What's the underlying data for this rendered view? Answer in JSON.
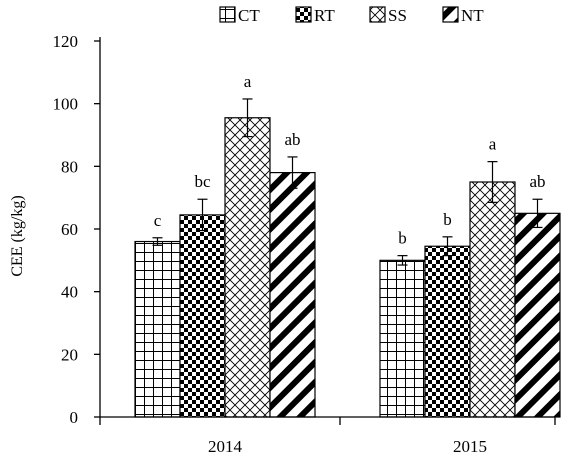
{
  "chart_data": {
    "type": "bar",
    "title": "",
    "xlabel": "",
    "ylabel": "CEE (kg/kg)",
    "ylim": [
      0,
      120
    ],
    "yticks": [
      0,
      20,
      40,
      60,
      80,
      100,
      120
    ],
    "grid": false,
    "legend_position": "top",
    "categories": [
      "2014",
      "2015"
    ],
    "series": [
      {
        "name": "CT",
        "pattern": "grid",
        "values": [
          56,
          50
        ],
        "errors": [
          1.2,
          1.5
        ],
        "labels": [
          "c",
          "b"
        ]
      },
      {
        "name": "RT",
        "pattern": "checker",
        "values": [
          64.5,
          54.5
        ],
        "errors": [
          5,
          3
        ],
        "labels": [
          "bc",
          "b"
        ]
      },
      {
        "name": "SS",
        "pattern": "crosshatch",
        "values": [
          95.5,
          75
        ],
        "errors": [
          6,
          6.5
        ],
        "labels": [
          "a",
          "a"
        ]
      },
      {
        "name": "NT",
        "pattern": "diagonal",
        "values": [
          78,
          65
        ],
        "errors": [
          5,
          4.5
        ],
        "labels": [
          "ab",
          "ab"
        ]
      }
    ],
    "colors": {
      "ink": "#000000",
      "background": "#ffffff"
    }
  }
}
